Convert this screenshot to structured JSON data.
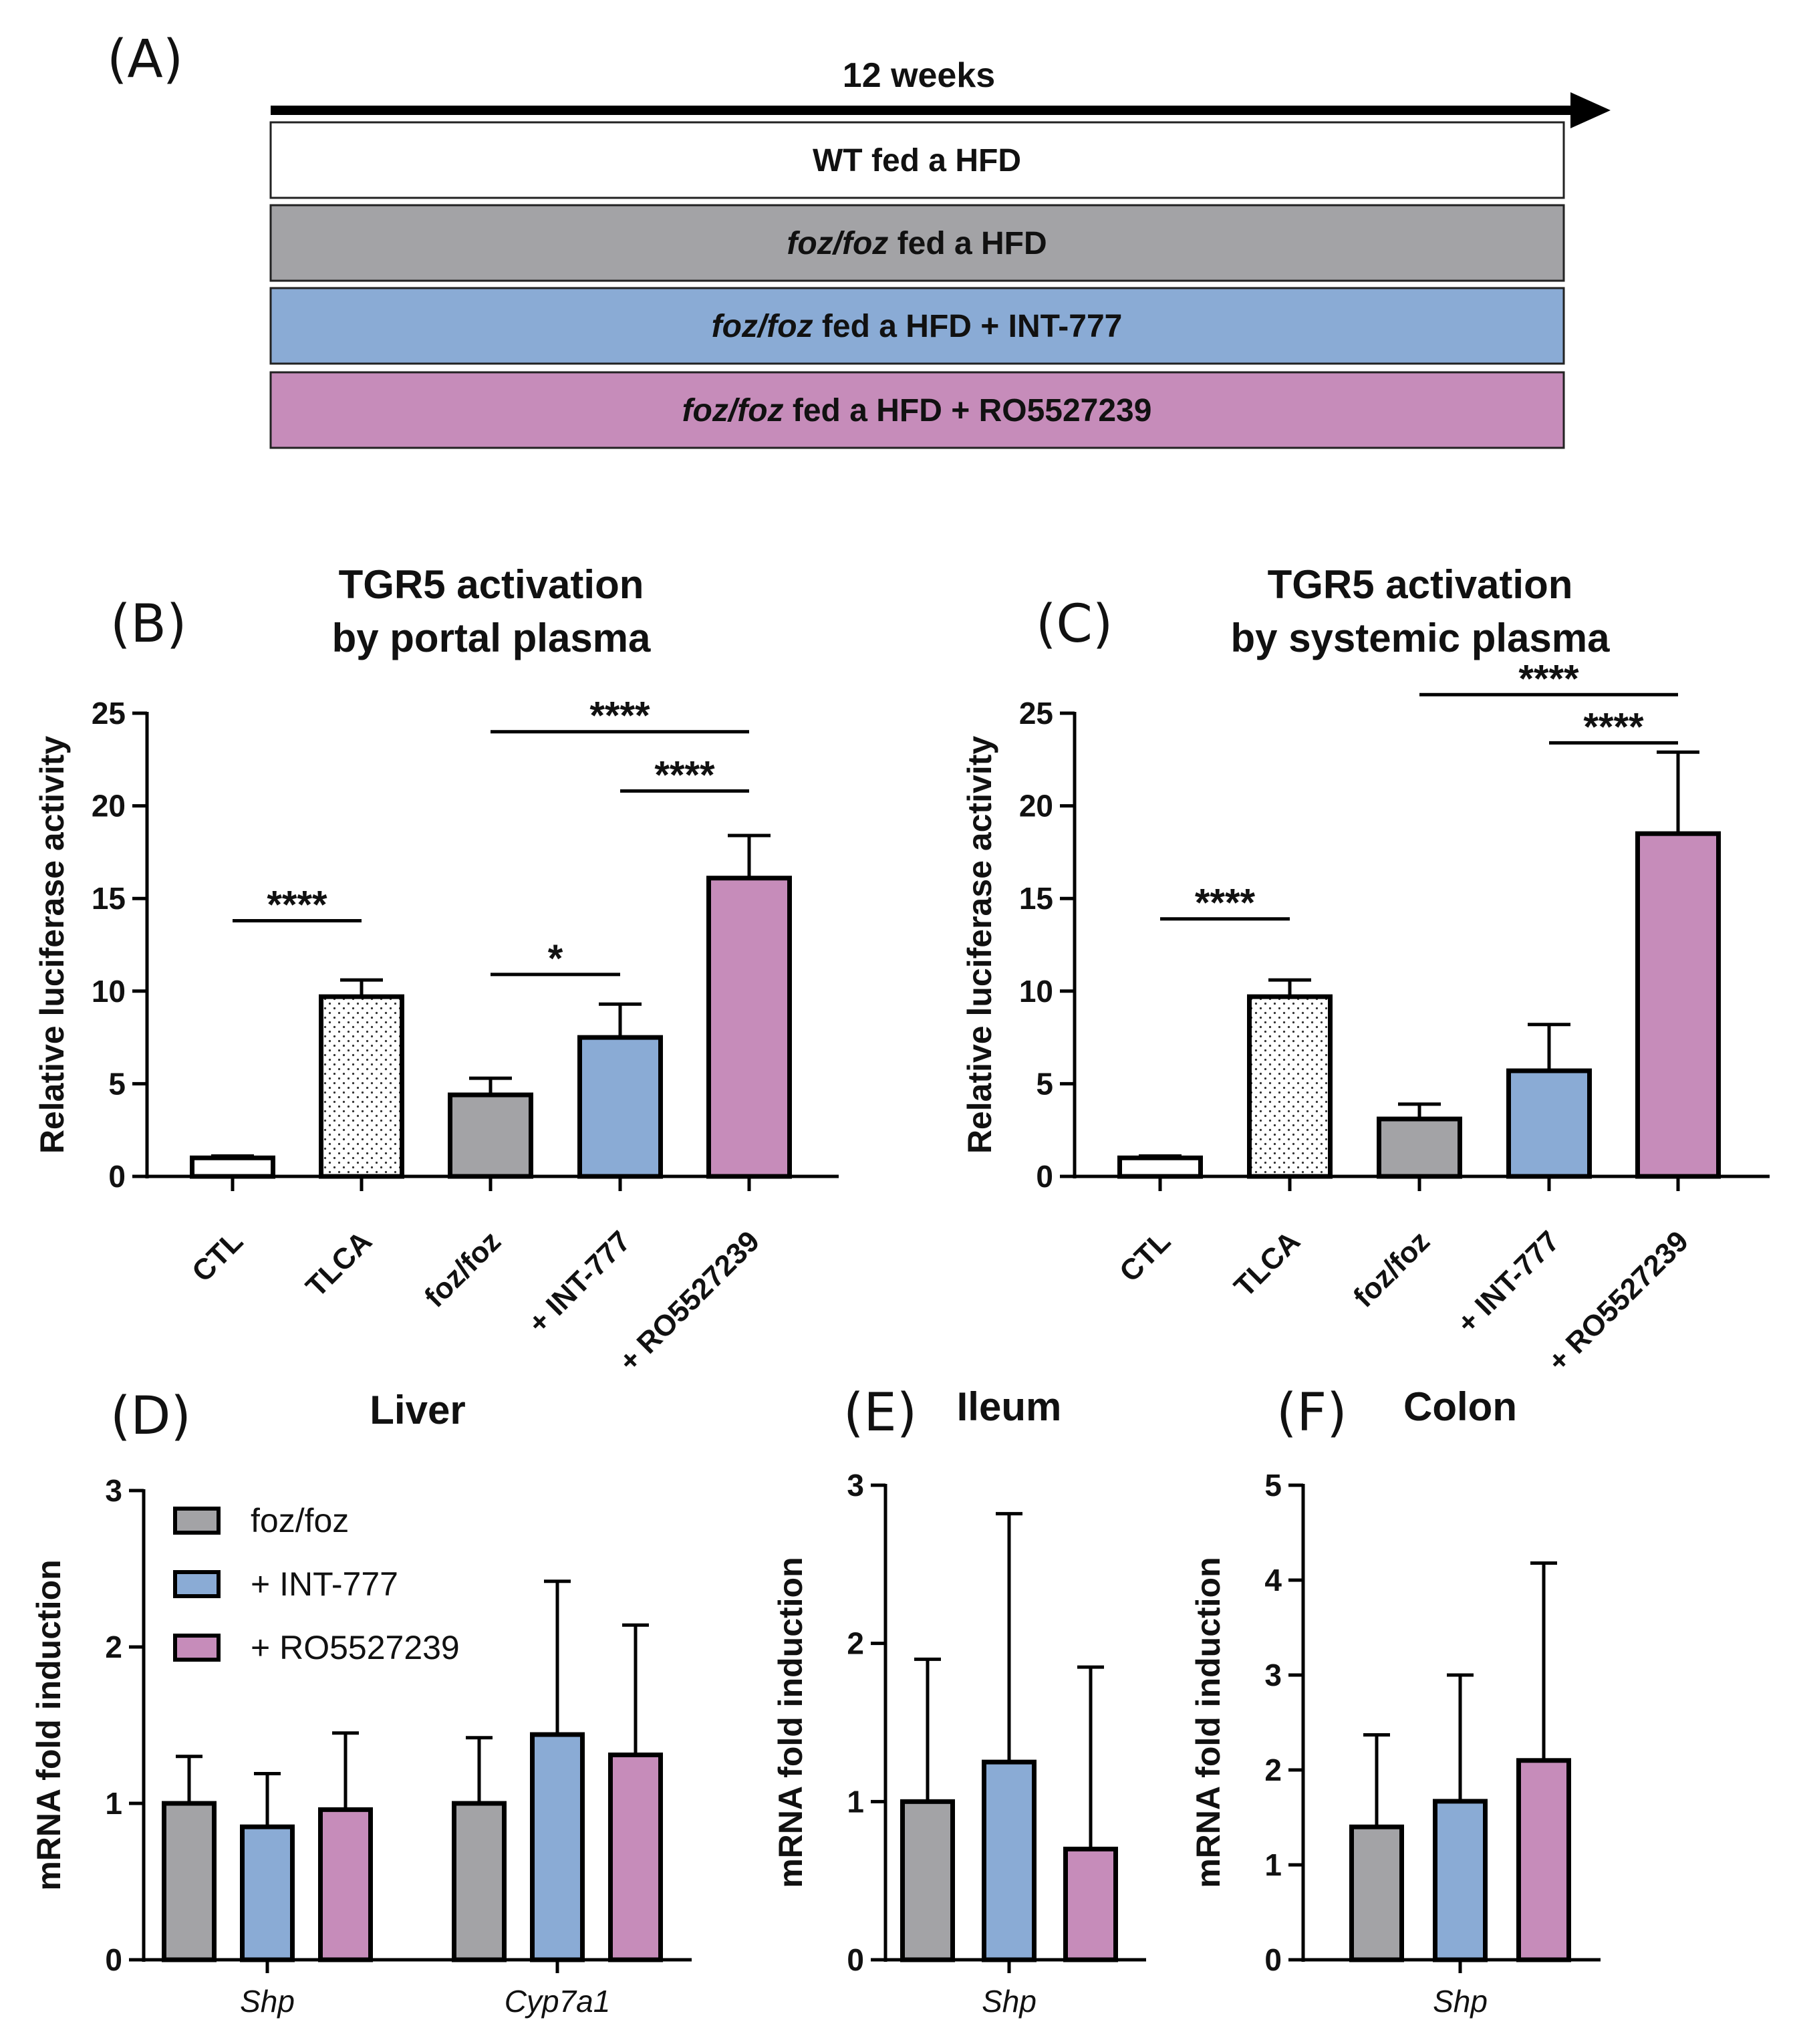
{
  "panel_a": {
    "letter": "(A)",
    "timeline": "12 weeks",
    "rows": [
      {
        "italic": "",
        "text": "WT fed a HFD",
        "color": "#ffffff"
      },
      {
        "italic": "foz/foz",
        "text": " fed a HFD",
        "color": "#a3a3a6"
      },
      {
        "italic": "foz/foz",
        "text": " fed a HFD + INT-777",
        "color": "#8aabd5"
      },
      {
        "italic": "foz/foz",
        "text": " fed a HFD + RO5527239",
        "color": "#c68cba"
      }
    ]
  },
  "colors": {
    "white": "#ffffff",
    "gray": "#a3a3a6",
    "blue": "#8aabd5",
    "pink": "#c68cba"
  },
  "chart_data": [
    {
      "id": "B",
      "letter": "(B)",
      "type": "bar",
      "title": [
        "TGR5 activation",
        "by portal plasma"
      ],
      "ylabel": "Relative luciferase activity",
      "ylim": [
        0,
        25
      ],
      "yticks": [
        0,
        5,
        10,
        15,
        20,
        25
      ],
      "categories": [
        "CTL",
        "TLCA",
        "foz/foz",
        "+ INT-777",
        "+ RO5527239"
      ],
      "values": [
        1.0,
        9.7,
        4.4,
        7.5,
        16.1
      ],
      "errors": [
        0.1,
        0.9,
        0.9,
        1.8,
        2.3
      ],
      "fills": [
        "white",
        "dots",
        "gray",
        "blue",
        "pink"
      ],
      "significance": [
        {
          "from": 0,
          "to": 1,
          "y": 13.8,
          "label": "****"
        },
        {
          "from": 2,
          "to": 3,
          "y": 10.9,
          "label": "*"
        },
        {
          "from": 3,
          "to": 4,
          "y": 20.8,
          "label": "****"
        },
        {
          "from": 2,
          "to": 4,
          "y": 24.0,
          "label": "****"
        }
      ]
    },
    {
      "id": "C",
      "letter": "(C)",
      "type": "bar",
      "title": [
        "TGR5 activation",
        "by systemic plasma"
      ],
      "ylabel": "Relative luciferase activity",
      "ylim": [
        0,
        25
      ],
      "yticks": [
        0,
        5,
        10,
        15,
        20,
        25
      ],
      "categories": [
        "CTL",
        "TLCA",
        "foz/foz",
        "+ INT-777",
        "+ RO5527239"
      ],
      "values": [
        1.0,
        9.7,
        3.1,
        5.7,
        18.5
      ],
      "errors": [
        0.1,
        0.9,
        0.8,
        2.5,
        4.4
      ],
      "fills": [
        "white",
        "dots",
        "gray",
        "blue",
        "pink"
      ],
      "significance": [
        {
          "from": 0,
          "to": 1,
          "y": 13.9,
          "label": "****"
        },
        {
          "from": 3,
          "to": 4,
          "y": 23.4,
          "label": "****"
        },
        {
          "from": 2,
          "to": 4,
          "y": 26.0,
          "label": "****"
        }
      ]
    },
    {
      "id": "D",
      "letter": "(D)",
      "type": "bar",
      "title": [
        "Liver"
      ],
      "ylabel": "mRNA fold induction",
      "ylim": [
        0,
        3
      ],
      "yticks": [
        0,
        1,
        2,
        3
      ],
      "groups": [
        "Shp",
        "Cyp7a1"
      ],
      "series": [
        {
          "name": "foz/foz",
          "color": "gray",
          "values": [
            1.0,
            1.0
          ],
          "errors": [
            0.3,
            0.42
          ]
        },
        {
          "name": "+ INT-777",
          "color": "blue",
          "values": [
            0.85,
            1.44
          ],
          "errors": [
            0.34,
            0.98
          ]
        },
        {
          "name": "+ RO5527239",
          "color": "pink",
          "values": [
            0.96,
            1.31
          ],
          "errors": [
            0.49,
            0.83
          ]
        }
      ],
      "legend": true
    },
    {
      "id": "E",
      "letter": "(E)",
      "type": "bar",
      "title": [
        "Ileum"
      ],
      "ylabel": "mRNA fold induction",
      "ylim": [
        0,
        3
      ],
      "yticks": [
        0,
        1,
        2,
        3
      ],
      "groups": [
        "Shp"
      ],
      "series": [
        {
          "name": "foz/foz",
          "color": "gray",
          "values": [
            1.0
          ],
          "errors": [
            0.9
          ]
        },
        {
          "name": "+ INT-777",
          "color": "blue",
          "values": [
            1.25
          ],
          "errors": [
            1.57
          ]
        },
        {
          "name": "+ RO5527239",
          "color": "pink",
          "values": [
            0.7
          ],
          "errors": [
            1.15
          ]
        }
      ],
      "legend": false
    },
    {
      "id": "F",
      "letter": "(F)",
      "type": "bar",
      "title": [
        "Colon"
      ],
      "ylabel": "mRNA fold induction",
      "ylim": [
        0,
        5
      ],
      "yticks": [
        0,
        1,
        2,
        3,
        4,
        5
      ],
      "groups": [
        "Shp"
      ],
      "series": [
        {
          "name": "foz/foz",
          "color": "gray",
          "values": [
            1.4
          ],
          "errors": [
            0.97
          ]
        },
        {
          "name": "+ INT-777",
          "color": "blue",
          "values": [
            1.67
          ],
          "errors": [
            1.33
          ]
        },
        {
          "name": "+ RO5527239",
          "color": "pink",
          "values": [
            2.1
          ],
          "errors": [
            2.08
          ]
        }
      ],
      "legend": false
    }
  ]
}
